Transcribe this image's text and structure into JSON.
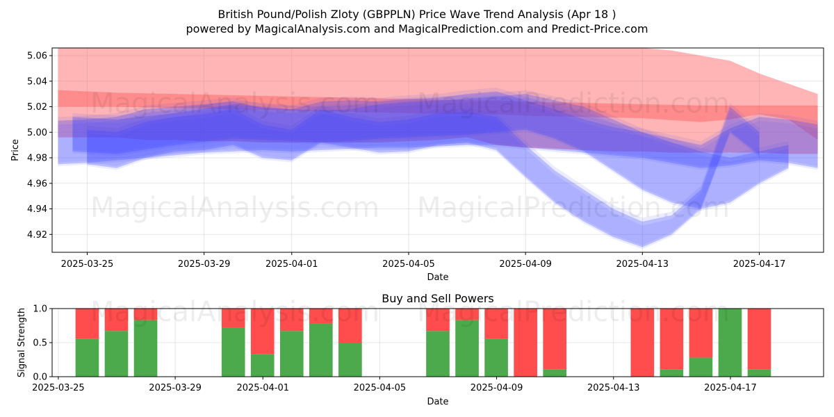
{
  "chart_data": [
    {
      "type": "area",
      "title_line1": "British Pound/Polish Zloty (GBPPLN) Price Wave Trend Analysis (Apr 18 )",
      "title_line2": "powered by MagicalAnalysis.com and MagicalPrediction.com and Predict-Price.com",
      "xlabel": "Date",
      "ylabel": "Price",
      "x_range": [
        "2025-03-23.8",
        "2025-04-19.2"
      ],
      "ylim": [
        4.906,
        5.066
      ],
      "x_ticks": [
        "2025-03-25",
        "2025-03-29",
        "2025-04-01",
        "2025-04-05",
        "2025-04-09",
        "2025-04-13",
        "2025-04-17"
      ],
      "y_ticks": [
        "4.92",
        "4.94",
        "4.96",
        "4.98",
        "5.00",
        "5.02",
        "5.04",
        "5.06"
      ],
      "watermarks": [
        "MagicalAnalysis.com",
        "MagicalPrediction.com"
      ],
      "series": [
        {
          "name": "red-band-outer",
          "color": "#ff5a5a",
          "x": [
            0,
            1,
            2,
            3,
            4,
            5,
            6,
            7,
            8,
            9,
            10,
            11,
            12,
            13,
            14,
            15,
            16,
            17,
            18,
            19,
            20,
            21,
            22,
            23,
            24,
            25,
            26
          ],
          "upper": [
            5.066,
            5.066,
            5.066,
            5.066,
            5.066,
            5.066,
            5.066,
            5.066,
            5.066,
            5.066,
            5.066,
            5.066,
            5.066,
            5.066,
            5.066,
            5.066,
            5.066,
            5.066,
            5.066,
            5.066,
            5.066,
            5.064,
            5.06,
            5.056,
            5.046,
            5.038,
            5.03
          ],
          "lower": [
            4.996,
            4.996,
            4.996,
            4.994,
            4.994,
            4.993,
            4.993,
            4.992,
            4.992,
            4.992,
            4.992,
            4.992,
            4.993,
            4.994,
            4.996,
            4.99,
            4.988,
            4.987,
            4.986,
            4.985,
            4.985,
            4.984,
            4.984,
            4.984,
            4.984,
            4.983,
            4.983
          ]
        },
        {
          "name": "red-band-inner",
          "color": "#ff5a5a",
          "x": [
            0,
            2,
            4,
            6,
            8,
            10,
            12,
            14,
            15,
            16,
            18,
            20,
            22,
            23,
            24,
            25,
            26
          ],
          "upper": [
            5.033,
            5.031,
            5.03,
            5.029,
            5.028,
            5.027,
            5.026,
            5.025,
            5.025,
            5.024,
            5.023,
            5.022,
            5.021,
            5.021,
            5.021,
            5.021,
            5.021
          ],
          "lower": [
            5.02,
            5.02,
            5.019,
            5.018,
            5.017,
            5.016,
            5.015,
            5.014,
            5.014,
            5.013,
            5.012,
            5.011,
            5.008,
            5.01,
            5.014,
            5.01,
            4.994
          ]
        },
        {
          "name": "blue-wave-1",
          "color": "#3c46ff",
          "x": [
            0.5,
            2,
            4,
            6,
            7,
            8,
            9,
            10,
            11,
            12,
            13,
            14,
            15,
            16,
            17,
            18,
            19,
            20,
            21,
            22,
            23,
            24,
            25
          ],
          "upper": [
            5.012,
            5.01,
            5.015,
            5.022,
            5.02,
            5.018,
            5.017,
            5.018,
            5.022,
            5.024,
            5.025,
            5.026,
            5.028,
            5.03,
            5.025,
            5.02,
            5.01,
            5.0,
            4.992,
            4.985,
            4.98,
            4.985,
            4.99
          ],
          "lower": [
            4.985,
            4.983,
            4.99,
            4.995,
            4.994,
            4.993,
            4.992,
            4.993,
            4.995,
            4.996,
            4.997,
            4.998,
            5.0,
            5.002,
            4.995,
            4.985,
            4.97,
            4.955,
            4.945,
            4.94,
            4.945,
            4.96,
            4.972
          ]
        },
        {
          "name": "blue-wave-2",
          "color": "#3c46ff",
          "x": [
            0,
            1,
            2,
            3,
            4,
            5,
            6,
            7,
            8,
            9,
            10,
            11,
            12,
            13,
            14,
            15,
            16,
            17,
            18,
            19,
            20,
            21,
            22,
            23,
            24,
            25,
            26
          ],
          "upper": [
            5.009,
            5.01,
            5.012,
            5.018,
            5.02,
            5.022,
            5.024,
            5.019,
            5.018,
            5.024,
            5.025,
            5.024,
            5.026,
            5.027,
            5.03,
            5.032,
            5.025,
            5.018,
            5.01,
            5.004,
            5.0,
            4.995,
            4.99,
            5.003,
            5.012,
            5.01,
            5.006
          ],
          "lower": [
            4.975,
            4.976,
            4.978,
            4.98,
            4.982,
            4.984,
            4.985,
            4.986,
            4.985,
            4.986,
            4.987,
            4.988,
            4.988,
            4.989,
            4.99,
            4.99,
            4.988,
            4.986,
            4.984,
            4.982,
            4.98,
            4.976,
            4.972,
            4.974,
            4.978,
            4.976,
            4.972
          ]
        },
        {
          "name": "blue-wave-3",
          "color": "#3c46ff",
          "x": [
            1,
            2,
            3,
            4,
            5,
            6,
            7,
            8,
            9,
            10,
            11,
            12,
            13,
            14,
            15,
            16,
            17,
            18,
            19,
            20,
            21,
            22,
            23,
            24
          ],
          "upper": [
            5.002,
            5.0,
            5.008,
            5.012,
            5.014,
            5.018,
            5.006,
            5.002,
            5.018,
            5.012,
            5.008,
            5.01,
            5.015,
            5.016,
            5.012,
            4.99,
            4.97,
            4.955,
            4.94,
            4.93,
            4.935,
            4.955,
            5.02,
            5.0
          ],
          "lower": [
            4.975,
            4.972,
            4.98,
            4.985,
            4.986,
            4.99,
            4.98,
            4.978,
            4.992,
            4.988,
            4.984,
            4.985,
            4.99,
            4.992,
            4.986,
            4.965,
            4.945,
            4.93,
            4.918,
            4.91,
            4.92,
            4.94,
            5.0,
            4.982
          ]
        }
      ],
      "opacity": 0.25
    },
    {
      "type": "bar",
      "title": "Buy and Sell Powers",
      "xlabel": "Date",
      "ylabel": "Signal Strength",
      "ylim": [
        0,
        1
      ],
      "y_ticks": [
        "0.0",
        "0.5",
        "1.0"
      ],
      "x_ticks": [
        "2025-03-25",
        "2025-03-29",
        "2025-04-01",
        "2025-04-05",
        "2025-04-09",
        "2025-04-13",
        "2025-04-17"
      ],
      "buy_color": "#4caa4c",
      "sell_color": "#ff4c4c",
      "categories": [
        "2025-03-25",
        "2025-03-26",
        "2025-03-27",
        "2025-03-28",
        "2025-03-31",
        "2025-04-01",
        "2025-04-02",
        "2025-04-03",
        "2025-04-04",
        "2025-04-07",
        "2025-04-08",
        "2025-04-09",
        "2025-04-10",
        "2025-04-11",
        "2025-04-14",
        "2025-04-15",
        "2025-04-16",
        "2025-04-17",
        "2025-04-18"
      ],
      "buy": [
        null,
        0.56,
        0.67,
        0.83,
        0.72,
        0.33,
        0.67,
        0.78,
        0.5,
        0.67,
        0.83,
        0.56,
        0.0,
        0.11,
        0.0,
        0.11,
        0.28,
        1.0,
        0.11
      ],
      "x_index": [
        -0.5,
        1,
        2,
        3,
        6,
        7,
        8,
        9,
        10,
        13,
        14,
        15,
        16,
        17,
        20,
        21,
        22,
        23,
        24
      ]
    }
  ]
}
